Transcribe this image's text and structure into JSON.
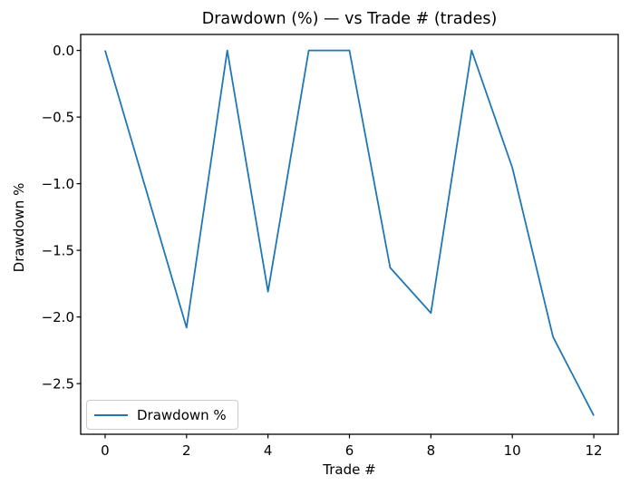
{
  "chart_data": {
    "type": "line",
    "title": "Drawdown (%) — vs Trade # (trades)",
    "xlabel": "Trade #",
    "ylabel": "Drawdown %",
    "x": [
      0,
      1,
      2,
      3,
      4,
      5,
      6,
      7,
      8,
      9,
      10,
      11,
      12
    ],
    "series": [
      {
        "name": "Drawdown %",
        "color": "#1f77b4",
        "values": [
          0.0,
          -1.04,
          -2.08,
          0.0,
          -1.81,
          0.0,
          0.0,
          -1.63,
          -1.97,
          0.0,
          -0.88,
          -2.15,
          -2.74
        ]
      }
    ],
    "xlim": [
      -0.6,
      12.6
    ],
    "ylim": [
      -2.88,
      0.12
    ],
    "xticks": {
      "values": [
        0,
        2,
        4,
        6,
        8,
        10,
        12
      ],
      "labels": [
        "0",
        "2",
        "4",
        "6",
        "8",
        "10",
        "12"
      ]
    },
    "yticks": {
      "values": [
        0,
        -0.5,
        -1,
        -1.5,
        -2,
        -2.5
      ],
      "labels": [
        "0.0",
        "−0.5",
        "−1.0",
        "−1.5",
        "−2.0",
        "−2.5"
      ]
    },
    "grid": false,
    "legend": {
      "position": "lower left",
      "entries": [
        {
          "label": "Drawdown %",
          "color": "#1f77b4"
        }
      ]
    }
  },
  "colors": {
    "line": "#1f77b4",
    "axis": "#000000",
    "text": "#000000",
    "legend_border": "#cccccc",
    "background": "#ffffff"
  }
}
